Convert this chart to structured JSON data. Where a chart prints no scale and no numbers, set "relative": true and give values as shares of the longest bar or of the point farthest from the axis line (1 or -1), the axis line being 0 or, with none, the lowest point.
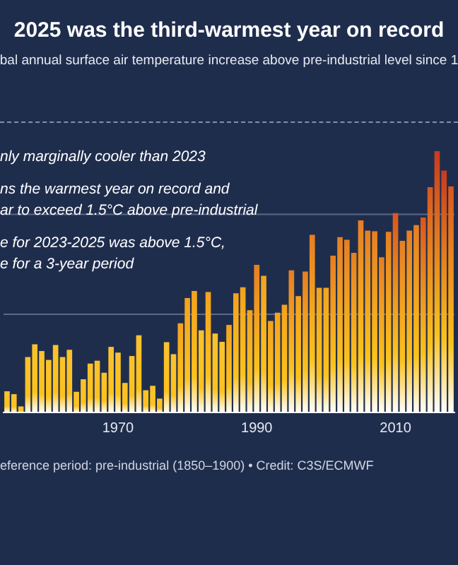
{
  "chart_data": {
    "type": "bar",
    "relative": true,
    "title": "2025 was the third-warmest year on record",
    "subtitle": "bal annual surface air temperature increase above pre-industrial level since 1",
    "annotations": [
      "nly marginally cooler than 2023",
      "ns the warmest year on record and",
      "ar to exceed 1.5°C above pre-industrial",
      "e for 2023-2025 was above 1.5°C,",
      "e for a 3-year period",
      "eference period: pre-industrial (1850–1900) • Credit: C3S/ECMWF"
    ],
    "categories": [
      null,
      null,
      null,
      null,
      null,
      null,
      null,
      null,
      null,
      null,
      null,
      null,
      null,
      null,
      null,
      null,
      "1970",
      null,
      null,
      null,
      null,
      null,
      null,
      null,
      null,
      null,
      null,
      null,
      null,
      null,
      null,
      null,
      null,
      null,
      null,
      null,
      "1990",
      null,
      null,
      null,
      null,
      null,
      null,
      null,
      null,
      null,
      null,
      null,
      null,
      null,
      null,
      null,
      null,
      null,
      null,
      null,
      "2010",
      null,
      null,
      null,
      null,
      null,
      null,
      null,
      null
    ],
    "values": [
      0.081,
      0.07,
      0.023,
      0.212,
      0.261,
      0.235,
      0.201,
      0.258,
      0.212,
      0.24,
      0.079,
      0.127,
      0.187,
      0.198,
      0.152,
      0.251,
      0.229,
      0.113,
      0.216,
      0.295,
      0.085,
      0.102,
      0.053,
      0.269,
      0.223,
      0.341,
      0.438,
      0.465,
      0.314,
      0.461,
      0.302,
      0.27,
      0.335,
      0.456,
      0.479,
      0.391,
      0.565,
      0.523,
      0.35,
      0.382,
      0.412,
      0.544,
      0.445,
      0.539,
      0.68,
      0.477,
      0.477,
      0.6,
      0.671,
      0.661,
      0.611,
      0.735,
      0.696,
      0.693,
      0.594,
      0.691,
      0.763,
      0.657,
      0.696,
      0.717,
      0.746,
      0.862,
      1,
      0.926,
      0.865
    ],
    "colors": [
      "#f9c22e",
      "#f9c22e",
      "#f9c22e",
      "#f9c22e",
      "#f9c22e",
      "#f9c22e",
      "#f9c22e",
      "#f9c22e",
      "#f9c22e",
      "#f9c22e",
      "#f9c22e",
      "#f9c22e",
      "#f9c22e",
      "#f9c22e",
      "#f9c22e",
      "#f9c22e",
      "#f9c22e",
      "#f9c22e",
      "#f9c22e",
      "#f9c22e",
      "#f9c22e",
      "#f9c22e",
      "#f9c22e",
      "#f9c22e",
      "#f9c22e",
      "#f3a21e",
      "#f3a21e",
      "#f3a21e",
      "#f9c22e",
      "#f3a21e",
      "#f9c22e",
      "#f9c22e",
      "#f3a21e",
      "#f3a21e",
      "#f3a21e",
      "#f3a21e",
      "#e67e22",
      "#f3a21e",
      "#f3a21e",
      "#f3a21e",
      "#f3a21e",
      "#e67e22",
      "#f3a21e",
      "#e67e22",
      "#e67e22",
      "#f3a21e",
      "#f3a21e",
      "#e67e22",
      "#e67e22",
      "#e67e22",
      "#e67e22",
      "#e67e22",
      "#e67e22",
      "#e67e22",
      "#e67e22",
      "#e67e22",
      "#d9561f",
      "#e67e22",
      "#e67e22",
      "#e67e22",
      "#d9561f",
      "#d9561f",
      "#c73a1f",
      "#c73a1f",
      "#d9561f"
    ],
    "ref_lines": [
      {
        "axis": "y",
        "value": 0.758,
        "color": "#5a6a8a"
      },
      {
        "axis": "y",
        "value": 0.376,
        "color": "#5a6a8a"
      }
    ],
    "grid": false,
    "legend": false
  }
}
